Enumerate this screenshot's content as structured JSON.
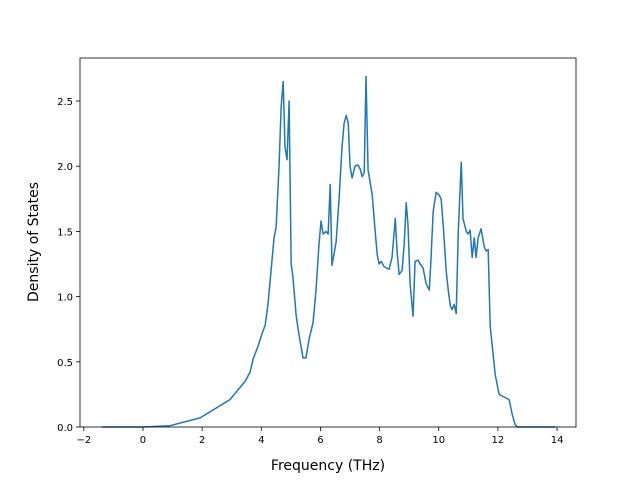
{
  "chart_data": {
    "type": "line",
    "xlabel": "Frequency (THz)",
    "ylabel": "Density of States",
    "xlim": [
      -2.13,
      14.64
    ],
    "ylim": [
      0,
      2.83
    ],
    "xticks": [
      {
        "value": -2,
        "label": "−2"
      },
      0,
      2,
      4,
      6,
      8,
      10,
      12,
      14
    ],
    "yticks": [
      {
        "value": 0,
        "label": "0.0"
      },
      0.5,
      {
        "value": 1,
        "label": "1.0"
      },
      1.5,
      {
        "value": 2,
        "label": "2.0"
      },
      2.5
    ],
    "x": [
      -1.39,
      0,
      0.91,
      1.93,
      2.94,
      3.45,
      3.62,
      3.72,
      3.89,
      4.03,
      4.13,
      4.23,
      4.33,
      4.43,
      4.5,
      4.6,
      4.67,
      4.74,
      4.8,
      4.87,
      4.94,
      5.01,
      5.07,
      5.18,
      5.28,
      5.41,
      5.51,
      5.62,
      5.75,
      5.85,
      5.95,
      6.02,
      6.09,
      6.19,
      6.26,
      6.33,
      6.39,
      6.53,
      6.63,
      6.73,
      6.8,
      6.87,
      6.94,
      7.0,
      7.07,
      7.17,
      7.27,
      7.34,
      7.41,
      7.48,
      7.54,
      7.61,
      7.75,
      7.85,
      7.92,
      7.98,
      8.05,
      8.15,
      8.32,
      8.42,
      8.53,
      8.59,
      8.66,
      8.76,
      8.83,
      8.9,
      8.96,
      9.03,
      9.13,
      9.2,
      9.3,
      9.37,
      9.47,
      9.57,
      9.68,
      9.74,
      9.81,
      9.91,
      10.01,
      10.08,
      10.15,
      10.25,
      10.32,
      10.39,
      10.45,
      10.52,
      10.59,
      10.66,
      10.76,
      10.82,
      10.93,
      10.99,
      11.06,
      11.13,
      11.2,
      11.26,
      11.33,
      11.43,
      11.54,
      11.6,
      11.67,
      11.74,
      11.84,
      11.91,
      12.04,
      12.21,
      12.38,
      12.48,
      12.58,
      12.65,
      13.94
    ],
    "series": [
      {
        "name": "DOS",
        "color": "#1f77b4",
        "values": [
          0,
          0,
          0.01,
          0.07,
          0.21,
          0.35,
          0.42,
          0.52,
          0.62,
          0.72,
          0.78,
          0.95,
          1.2,
          1.45,
          1.53,
          2.0,
          2.45,
          2.65,
          2.15,
          2.05,
          2.5,
          1.25,
          1.15,
          0.85,
          0.7,
          0.53,
          0.53,
          0.68,
          0.8,
          1.05,
          1.4,
          1.58,
          1.48,
          1.5,
          1.48,
          1.86,
          1.24,
          1.42,
          1.75,
          2.15,
          2.33,
          2.39,
          2.33,
          2.0,
          1.91,
          2.0,
          2.01,
          1.98,
          1.92,
          1.95,
          2.69,
          1.97,
          1.78,
          1.5,
          1.32,
          1.25,
          1.27,
          1.23,
          1.21,
          1.3,
          1.6,
          1.35,
          1.17,
          1.2,
          1.4,
          1.72,
          1.55,
          1.1,
          0.85,
          1.27,
          1.28,
          1.25,
          1.22,
          1.1,
          1.05,
          1.3,
          1.65,
          1.8,
          1.78,
          1.75,
          1.55,
          1.2,
          1.05,
          0.93,
          0.9,
          0.94,
          0.87,
          1.5,
          2.03,
          1.6,
          1.5,
          1.48,
          1.51,
          1.3,
          1.45,
          1.3,
          1.45,
          1.52,
          1.38,
          1.35,
          1.36,
          0.77,
          0.55,
          0.4,
          0.25,
          0.23,
          0.21,
          0.1,
          0.02,
          0,
          0
        ]
      }
    ]
  }
}
